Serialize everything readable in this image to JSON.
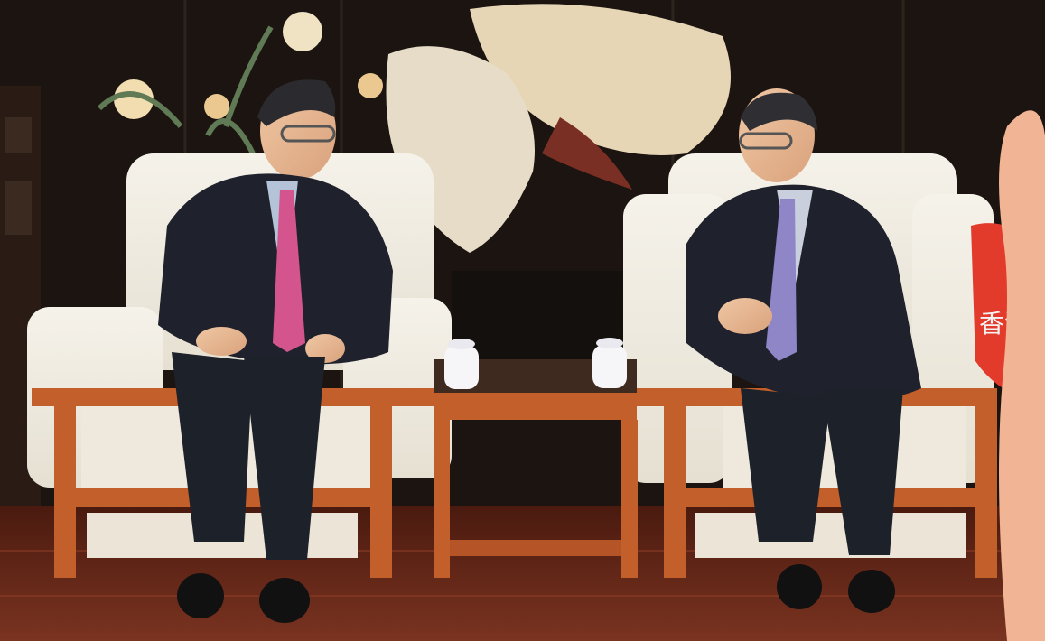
{
  "photo": {
    "description_visible_text": "香港",
    "palette": {
      "screen_dark": "#1b1410",
      "wood_floor": "#6a2a18",
      "chair_fabric": "#f1ece2",
      "chair_wood": "#c25f2b",
      "suit": "#1f222c",
      "tie_left": "#d4548e",
      "tie_right": "#8f86c7",
      "cup": "#f6f6f8",
      "accent_red": "#e23b2b"
    }
  }
}
